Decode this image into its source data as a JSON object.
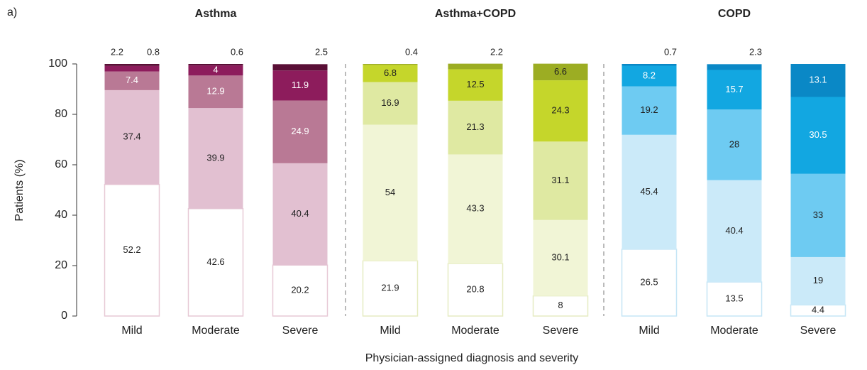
{
  "chart_data": {
    "type": "bar",
    "stacked": true,
    "panel_label": "a)",
    "ylabel": "Patients (%)",
    "xlabel": "Physician-assigned diagnosis and severity",
    "ylim": [
      0,
      100
    ],
    "yticks": [
      0,
      20,
      40,
      60,
      80,
      100
    ],
    "groups": [
      {
        "title": "Asthma",
        "border": "#e7c9d6",
        "categories": [
          "Mild",
          "Moderate",
          "Severe"
        ],
        "series": [
          {
            "color": "#ffffff",
            "values": [
              52.2,
              42.6,
              20.2
            ]
          },
          {
            "color": "#e2c0d1",
            "values": [
              37.4,
              39.9,
              40.4
            ]
          },
          {
            "color": "#b97995",
            "values": [
              7.4,
              12.9,
              24.9
            ]
          },
          {
            "color": "#8d1c5c",
            "values": [
              2.2,
              4.0,
              11.9
            ]
          },
          {
            "color": "#5a0f36",
            "values": [
              0.8,
              0.6,
              2.5
            ]
          }
        ]
      },
      {
        "title": "Asthma+COPD",
        "border": "#e6ecc2",
        "categories": [
          "Mild",
          "Moderate",
          "Severe"
        ],
        "series": [
          {
            "color": "#ffffff",
            "values": [
              21.9,
              20.8,
              8.0
            ]
          },
          {
            "color": "#f1f5d6",
            "values": [
              54.0,
              43.3,
              30.1
            ]
          },
          {
            "color": "#dfe9a2",
            "values": [
              16.9,
              21.3,
              31.1
            ]
          },
          {
            "color": "#c5d62b",
            "values": [
              6.8,
              12.5,
              24.3
            ]
          },
          {
            "color": "#9cad23",
            "values": [
              0.4,
              2.2,
              6.6
            ]
          }
        ]
      },
      {
        "title": "COPD",
        "border": "#c6e6f6",
        "categories": [
          "Mild",
          "Moderate",
          "Severe"
        ],
        "series": [
          {
            "color": "#ffffff",
            "values": [
              26.5,
              13.5,
              4.4
            ]
          },
          {
            "color": "#cbeaf9",
            "values": [
              45.4,
              40.4,
              19.0
            ]
          },
          {
            "color": "#6ecbf2",
            "values": [
              19.2,
              28.0,
              33.0
            ]
          },
          {
            "color": "#12a7e1",
            "values": [
              8.2,
              15.7,
              30.5
            ]
          },
          {
            "color": "#0a88c6",
            "values": [
              0.7,
              2.3,
              13.1
            ]
          }
        ]
      }
    ]
  }
}
